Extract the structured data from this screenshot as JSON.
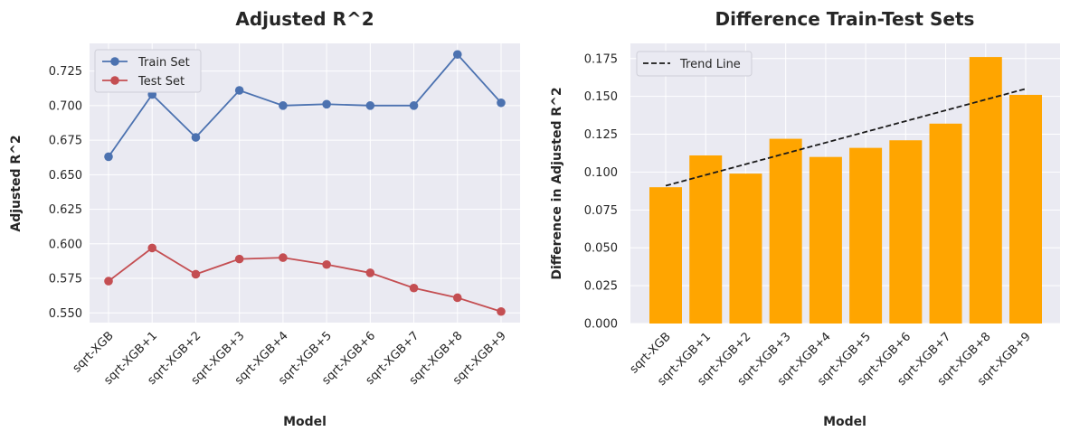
{
  "chart_data": [
    {
      "type": "line",
      "title": "Adjusted R^2",
      "xlabel": "Model",
      "ylabel": "Adjusted R^2",
      "categories": [
        "sqrt-XGB",
        "sqrt-XGB+1",
        "sqrt-XGB+2",
        "sqrt-XGB+3",
        "sqrt-XGB+4",
        "sqrt-XGB+5",
        "sqrt-XGB+6",
        "sqrt-XGB+7",
        "sqrt-XGB+8",
        "sqrt-XGB+9"
      ],
      "ylim": [
        0.543,
        0.745
      ],
      "yticks": [
        "0.550",
        "0.575",
        "0.600",
        "0.625",
        "0.650",
        "0.675",
        "0.700",
        "0.725"
      ],
      "grid": true,
      "legend": "top-left",
      "series": [
        {
          "name": "Train Set",
          "color": "#4c72b0",
          "values": [
            0.663,
            0.708,
            0.677,
            0.711,
            0.7,
            0.701,
            0.7,
            0.7,
            0.737,
            0.702
          ]
        },
        {
          "name": "Test Set",
          "color": "#c44e52",
          "values": [
            0.573,
            0.597,
            0.578,
            0.589,
            0.59,
            0.585,
            0.579,
            0.568,
            0.561,
            0.551
          ]
        }
      ]
    },
    {
      "type": "bar",
      "title": "Difference Train-Test Sets",
      "xlabel": "Model",
      "ylabel": "Difference in Adjusted R^2",
      "categories": [
        "sqrt-XGB",
        "sqrt-XGB+1",
        "sqrt-XGB+2",
        "sqrt-XGB+3",
        "sqrt-XGB+4",
        "sqrt-XGB+5",
        "sqrt-XGB+6",
        "sqrt-XGB+7",
        "sqrt-XGB+8",
        "sqrt-XGB+9"
      ],
      "values": [
        0.09,
        0.111,
        0.099,
        0.122,
        0.11,
        0.116,
        0.121,
        0.132,
        0.176,
        0.151
      ],
      "bar_color": "#ffa500",
      "ylim": [
        0,
        0.185
      ],
      "yticks": [
        "0.000",
        "0.025",
        "0.050",
        "0.075",
        "0.100",
        "0.125",
        "0.150",
        "0.175"
      ],
      "grid": true,
      "legend": "top-left",
      "trend_line": {
        "name": "Trend Line",
        "color": "#1a1a1a",
        "style": "dashed",
        "start": 0.091,
        "end": 0.155
      }
    }
  ]
}
